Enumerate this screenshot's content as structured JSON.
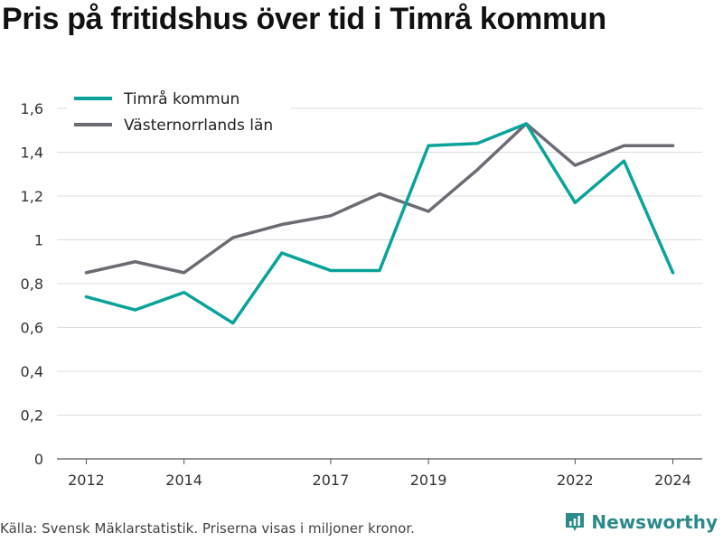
{
  "title": "Pris på fritidshus över tid i Timrå kommun",
  "source": "Källa: Svensk Mäklarstatistik. Priserna visas i miljoner kronor.",
  "brand": {
    "name": "Newsworthy",
    "icon": "bar-chart-logo-icon",
    "color": "#2d8a8a"
  },
  "chart_data": {
    "type": "line",
    "title": "Pris på fritidshus över tid i Timrå kommun",
    "xlabel": "",
    "ylabel": "",
    "x": [
      2012,
      2013,
      2014,
      2015,
      2016,
      2017,
      2018,
      2019,
      2020,
      2021,
      2022,
      2023,
      2024
    ],
    "x_tick_labels": [
      "2012",
      "2014",
      "2017",
      "2019",
      "2022",
      "2024"
    ],
    "x_tick_values": [
      2012,
      2014,
      2017,
      2019,
      2022,
      2024
    ],
    "xlim": [
      2011.4,
      2024.6
    ],
    "ylim": [
      0,
      1.6
    ],
    "y_ticks": [
      0,
      0.2,
      0.4,
      0.6,
      0.8,
      1,
      1.2,
      1.4,
      1.6
    ],
    "y_tick_labels": [
      "0",
      "0,2",
      "0,4",
      "0,6",
      "0,8",
      "1",
      "1,2",
      "1,4",
      "1,6"
    ],
    "grid": true,
    "legend_position": "top-left",
    "series": [
      {
        "name": "Timrå kommun",
        "color": "#0aa39a",
        "values": [
          0.74,
          0.68,
          0.76,
          0.62,
          0.94,
          0.86,
          0.86,
          1.43,
          1.44,
          1.53,
          1.17,
          1.36,
          0.85
        ]
      },
      {
        "name": "Västernorrlands län",
        "color": "#6b6b73",
        "values": [
          0.85,
          0.9,
          0.85,
          1.01,
          1.07,
          1.11,
          1.21,
          1.13,
          1.32,
          1.53,
          1.34,
          1.43,
          1.43
        ]
      }
    ]
  }
}
